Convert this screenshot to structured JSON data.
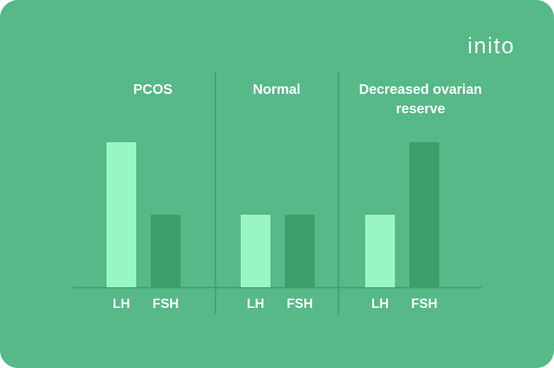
{
  "brand": "inito",
  "chart_data": {
    "type": "bar",
    "colors": [
      "#9af5c4",
      "#3a9f68"
    ],
    "groups": [
      {
        "title": "PCOS",
        "categories": [
          "LH",
          "FSH"
        ],
        "values": [
          2,
          1
        ]
      },
      {
        "title": "Normal",
        "categories": [
          "LH",
          "FSH"
        ],
        "values": [
          1,
          1
        ]
      },
      {
        "title": "Decreased ovarian reserve",
        "categories": [
          "LH",
          "FSH"
        ],
        "values": [
          1,
          2
        ]
      }
    ]
  }
}
